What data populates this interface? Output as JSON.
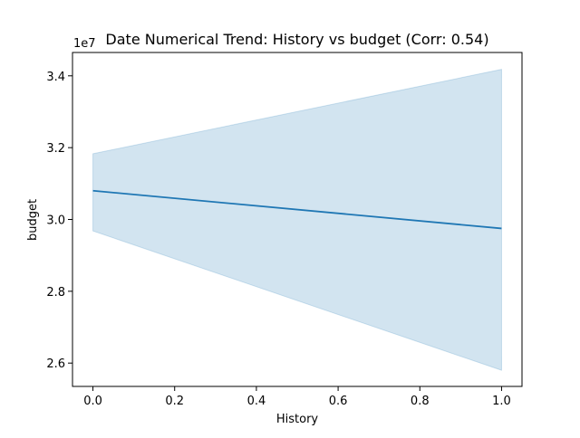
{
  "chart_data": {
    "type": "line",
    "title": "Date Numerical Trend: History vs budget (Corr: 0.54)",
    "xlabel": "History",
    "ylabel": "budget",
    "y_offset_label": "1e7",
    "xlim": [
      -0.05,
      1.05
    ],
    "ylim": [
      25350000,
      34650000
    ],
    "x_ticks": [
      0.0,
      0.2,
      0.4,
      0.6,
      0.8,
      1.0
    ],
    "x_tick_labels": [
      "0.0",
      "0.2",
      "0.4",
      "0.6",
      "0.8",
      "1.0"
    ],
    "y_ticks": [
      26000000,
      28000000,
      30000000,
      32000000,
      34000000
    ],
    "y_tick_labels": [
      "2.6",
      "2.8",
      "3.0",
      "3.2",
      "3.4"
    ],
    "grid": false,
    "series": [
      {
        "x": [
          0.0,
          1.0
        ],
        "y": [
          30800000,
          29750000
        ],
        "ci_lower": [
          29680000,
          25800000
        ],
        "ci_upper": [
          31830000,
          34180000
        ],
        "color": "#1f77b4",
        "band_color": "#1f77b4"
      }
    ]
  }
}
